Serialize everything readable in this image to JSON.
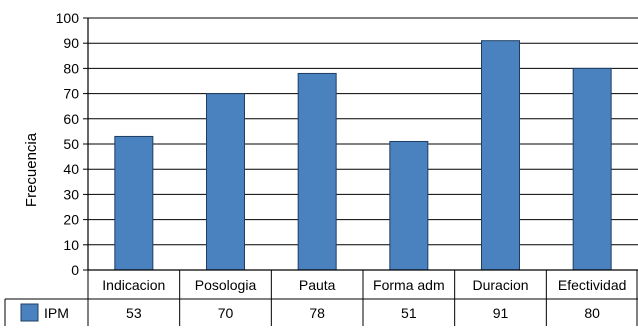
{
  "chart_data": {
    "type": "bar",
    "title": "",
    "xlabel": "",
    "ylabel": "Frecuencia",
    "ylim": [
      0,
      100
    ],
    "yticks": [
      0,
      10,
      20,
      30,
      40,
      50,
      60,
      70,
      80,
      90,
      100
    ],
    "grid": true,
    "legend_position": "bottom-left",
    "categories": [
      "Indicacion",
      "Posologia",
      "Pauta",
      "Forma adm",
      "Duracion",
      "Efectividad"
    ],
    "series": [
      {
        "name": "IPM",
        "values": [
          53,
          70,
          78,
          51,
          91,
          80
        ],
        "color": "#4a82c0",
        "edge_color": "#1f3d63"
      }
    ]
  }
}
